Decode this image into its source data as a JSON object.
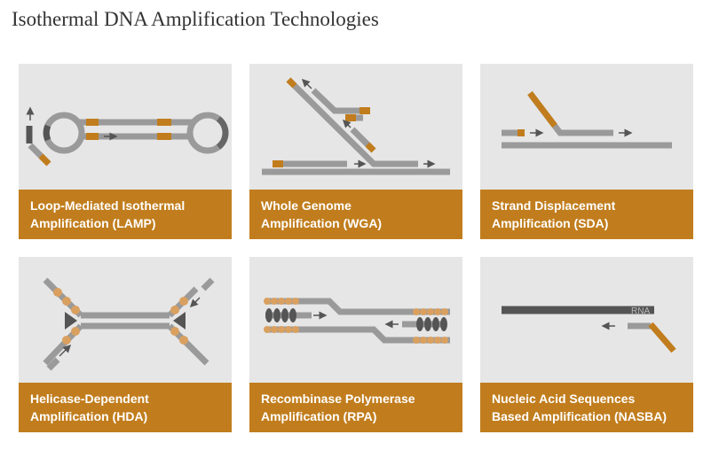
{
  "title": "Isothermal DNA Amplification Technologies",
  "colors": {
    "strand": "#9a9a9a",
    "strand_dark": "#666666",
    "accent": "#c17d1d",
    "card_bg": "#e6e6e6",
    "arrow": "#555555"
  },
  "cards": [
    {
      "line1": "Loop-Mediated Isothermal",
      "line2": "Amplification (LAMP)"
    },
    {
      "line1": "Whole Genome",
      "line2": "Amplification (WGA)"
    },
    {
      "line1": "Strand Displacement",
      "line2": "Amplification (SDA)"
    },
    {
      "line1": "Helicase-Dependent",
      "line2": "Amplification (HDA)"
    },
    {
      "line1": "Recombinase Polymerase",
      "line2": "Amplification (RPA)"
    },
    {
      "line1": "Nucleic Acid Sequences",
      "line2": "Based Amplification (NASBA)"
    }
  ],
  "nasba_rna_label": "RNA"
}
